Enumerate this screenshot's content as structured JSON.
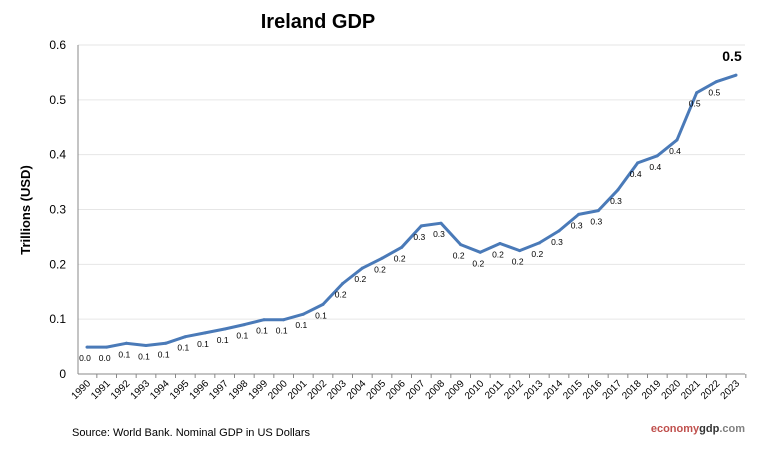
{
  "chart_data": {
    "type": "line",
    "title": "Ireland GDP",
    "ylabel": "Trillions (USD)",
    "xlabel": "",
    "ylim": [
      0,
      0.6
    ],
    "yticks": [
      "0",
      "0.1",
      "0.2",
      "0.3",
      "0.4",
      "0.5",
      "0.6"
    ],
    "grid": true,
    "legend": "none",
    "line_color": "#4a7ab8",
    "categories": [
      "1990",
      "1991",
      "1992",
      "1993",
      "1994",
      "1995",
      "1996",
      "1997",
      "1998",
      "1999",
      "2000",
      "2001",
      "2002",
      "2003",
      "2004",
      "2005",
      "2006",
      "2007",
      "2008",
      "2009",
      "2010",
      "2011",
      "2012",
      "2013",
      "2014",
      "2015",
      "2016",
      "2017",
      "2018",
      "2019",
      "2020",
      "2021",
      "2022",
      "2023"
    ],
    "values": [
      0.049,
      0.049,
      0.056,
      0.052,
      0.056,
      0.068,
      0.075,
      0.082,
      0.09,
      0.099,
      0.099,
      0.109,
      0.127,
      0.165,
      0.193,
      0.211,
      0.231,
      0.27,
      0.275,
      0.236,
      0.222,
      0.238,
      0.225,
      0.239,
      0.261,
      0.291,
      0.298,
      0.336,
      0.385,
      0.398,
      0.427,
      0.513,
      0.533,
      0.545
    ],
    "data_labels": [
      "0.0",
      "0.0",
      "0.1",
      "0.1",
      "0.1",
      "0.1",
      "0.1",
      "0.1",
      "0.1",
      "0.1",
      "0.1",
      "0.1",
      "0.1",
      "0.2",
      "0.2",
      "0.2",
      "0.2",
      "0.3",
      "0.3",
      "0.2",
      "0.2",
      "0.2",
      "0.2",
      "0.2",
      "0.3",
      "0.3",
      "0.3",
      "0.3",
      "0.4",
      "0.4",
      "0.4",
      "0.5",
      "0.5",
      "0.5"
    ],
    "source": "Source: World Bank.  Nominal GDP in US Dollars",
    "brand": {
      "part1": "economy",
      "part2": "gdp",
      "part3": ".com",
      "color1": "#c0504d",
      "color2": "#333333",
      "color3": "#808080"
    }
  }
}
